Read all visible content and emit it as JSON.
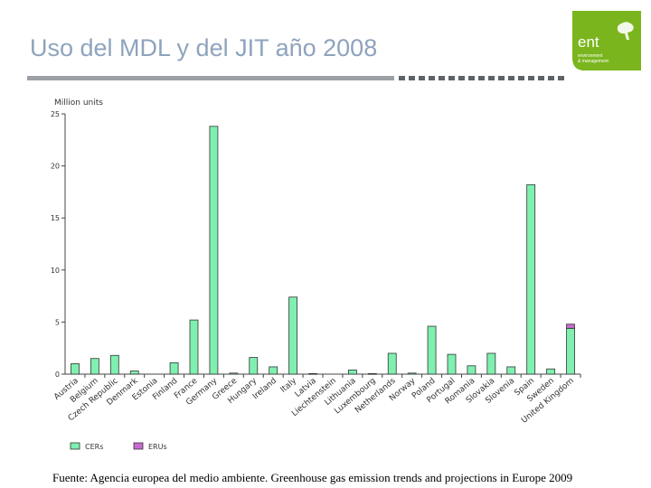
{
  "page": {
    "title": "Uso del MDL y del JIT año 2008",
    "source": "Fuente: Agencia europea del medio ambiente. Greenhouse gas emission trends and projections in Europe 2009"
  },
  "logo": {
    "mark": "ent",
    "line1": "environment",
    "line2": "& management",
    "color": "#7ab51d"
  },
  "chart_data": {
    "type": "bar",
    "stacked": true,
    "ylabel": "Million units",
    "ylim": [
      0,
      25
    ],
    "yticks": [
      0,
      5,
      10,
      15,
      20,
      25
    ],
    "grid": false,
    "legend_position": "bottom-left",
    "categories": [
      "Austria",
      "Belgium",
      "Czech Republic",
      "Denmark",
      "Estonia",
      "Finland",
      "France",
      "Germany",
      "Greece",
      "Hungary",
      "Ireland",
      "Italy",
      "Latvia",
      "Liechtenstein",
      "Lithuania",
      "Luxembourg",
      "Netherlands",
      "Norway",
      "Poland",
      "Portugal",
      "Romania",
      "Slovakia",
      "Slovenia",
      "Spain",
      "Sweden",
      "United Kingdom"
    ],
    "series": [
      {
        "name": "CERs",
        "color": "#7ff0b0",
        "values": [
          1.0,
          1.5,
          1.8,
          0.3,
          0.0,
          1.1,
          5.2,
          23.8,
          0.1,
          1.6,
          0.7,
          7.4,
          0.05,
          0.0,
          0.4,
          0.05,
          2.0,
          0.1,
          4.6,
          1.9,
          0.8,
          2.0,
          0.7,
          18.2,
          0.5,
          4.4
        ]
      },
      {
        "name": "ERUs",
        "color": "#c86bd0",
        "values": [
          0,
          0,
          0,
          0,
          0,
          0,
          0,
          0,
          0,
          0,
          0,
          0,
          0,
          0,
          0,
          0,
          0,
          0,
          0,
          0,
          0,
          0,
          0,
          0,
          0,
          0.4
        ]
      }
    ]
  }
}
